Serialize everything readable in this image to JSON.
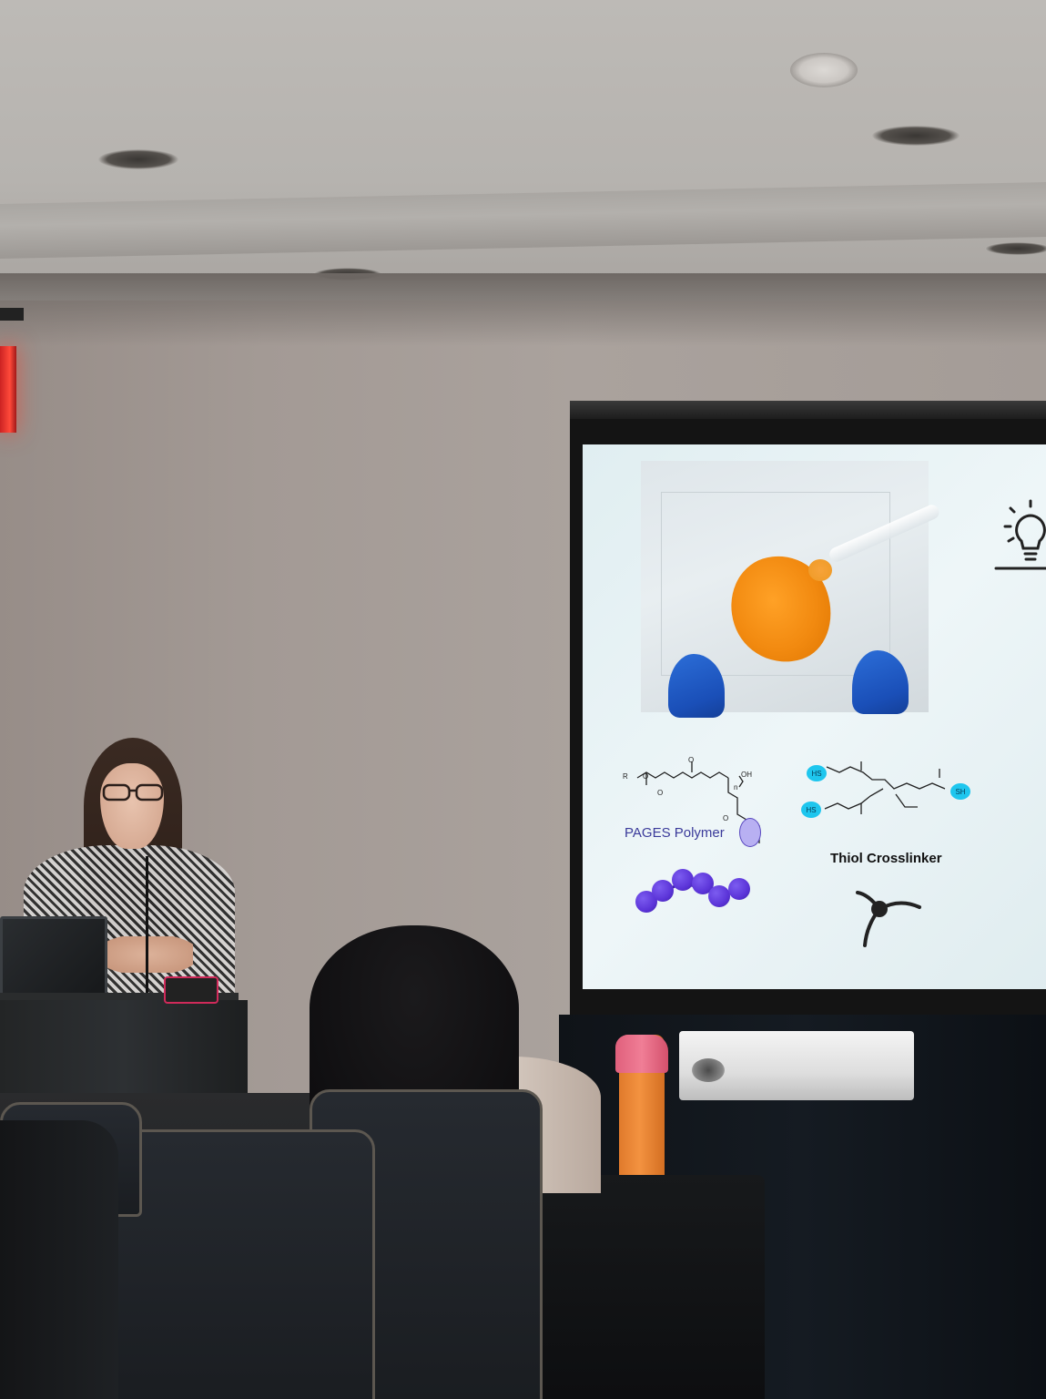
{
  "slide": {
    "polymer_label": "PAGES Polymer",
    "crosslinker_label": "Thiol Crosslinker",
    "chem_r": "R",
    "chem_o1": "O",
    "chem_o2": "O",
    "chem_o3": "O",
    "chem_o4": "O",
    "chem_oh": "OH",
    "chem_n": "n",
    "hs_1": "HS",
    "hs_2": "HS",
    "sh_1": "SH"
  },
  "colors": {
    "screen": "#e6f1f4",
    "blob": "#f28a10",
    "glove": "#1f5cc8",
    "thiol_badge": "#1ec6ee",
    "bead": "#5b34d8",
    "exit_sign": "#ff3b2f"
  },
  "icons": {
    "slide_icon": "lightbulb-icon"
  }
}
